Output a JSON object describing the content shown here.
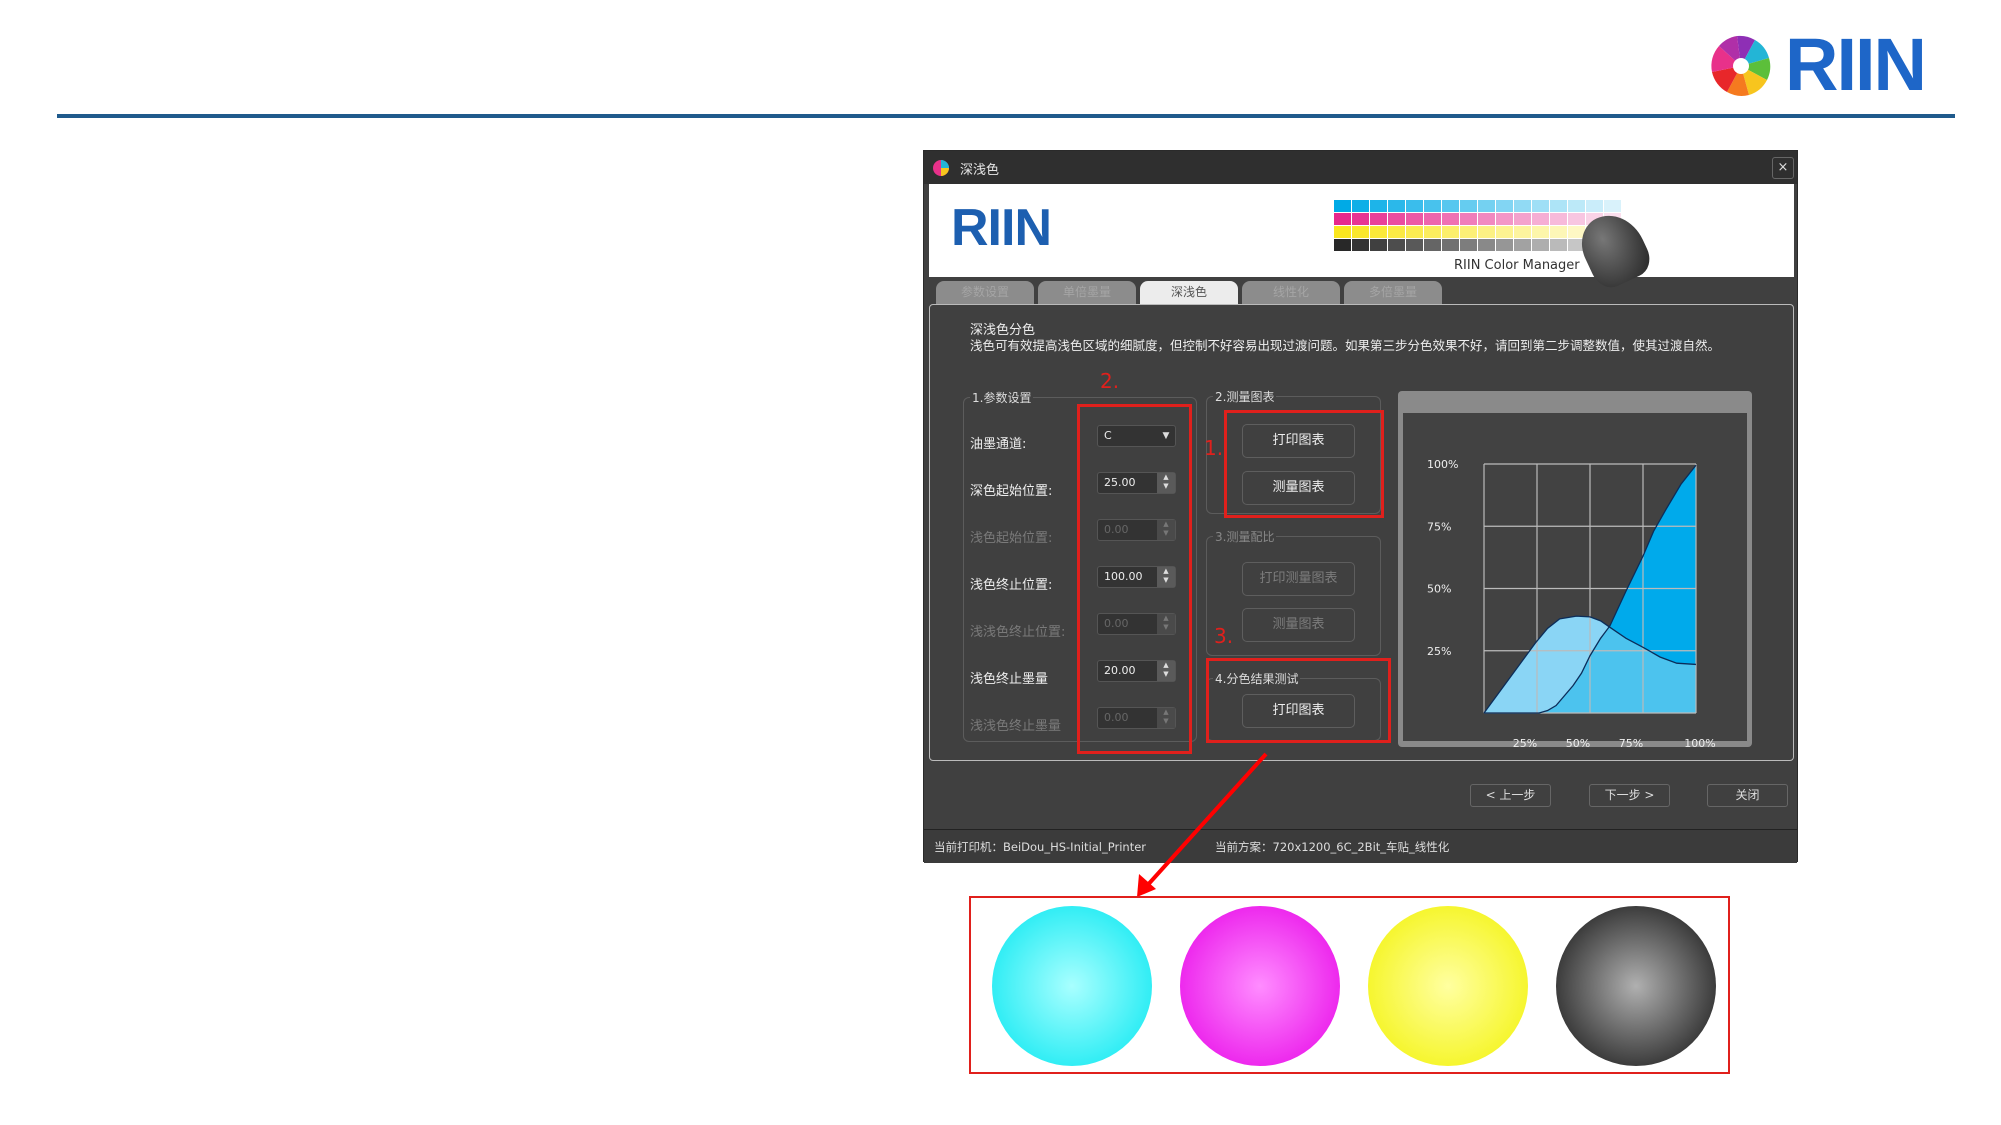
{
  "brand": {
    "name": "RIIN"
  },
  "dialog": {
    "title": "深浅色",
    "close": "×",
    "banner_logo": "RIIN",
    "banner_caption": "RIIN Color Manager",
    "tabs": [
      {
        "label": "参数设置"
      },
      {
        "label": "单倍墨量"
      },
      {
        "label": "深浅色",
        "active": true
      },
      {
        "label": "线性化"
      },
      {
        "label": "多倍墨量"
      }
    ],
    "section_title": "深浅色分色",
    "description": "浅色可有效提高浅色区域的细腻度，但控制不好容易出现过渡问题。如果第三步分色效果不好，请回到第二步调整数值，使其过渡自然。",
    "group1": {
      "title": "1.参数设置",
      "fields": [
        {
          "label": "油墨通道:",
          "value": "C",
          "type": "select",
          "enabled": true
        },
        {
          "label": "深色起始位置:",
          "value": "25.00",
          "enabled": true
        },
        {
          "label": "浅色起始位置:",
          "value": "0.00",
          "enabled": false
        },
        {
          "label": "浅色终止位置:",
          "value": "100.00",
          "enabled": true
        },
        {
          "label": "浅浅色终止位置:",
          "value": "0.00",
          "enabled": false
        },
        {
          "label": "浅色终止墨量",
          "value": "20.00",
          "enabled": true
        },
        {
          "label": "浅浅色终止墨量",
          "value": "0.00",
          "enabled": false
        }
      ]
    },
    "group2": {
      "title": "2.测量图表",
      "print": "打印图表",
      "measure": "测量图表"
    },
    "group3": {
      "title": "3.测量配比",
      "print": "打印测量图表",
      "measure": "测量图表"
    },
    "group4": {
      "title": "4.分色结果测试",
      "print": "打印图表"
    },
    "annotations": {
      "step1": "1.",
      "step2": "2.",
      "step3": "3."
    },
    "prev": "< 上一步",
    "next": "下一步 >",
    "close_btn": "关闭",
    "status": {
      "printer": "当前打印机：BeiDou_HS-Initial_Printer",
      "scheme": "当前方案：720x1200_6C_2Bit_车贴_线性化"
    }
  },
  "chart_data": {
    "type": "area",
    "x_ticks": [
      "25%",
      "50%",
      "75%",
      "100%"
    ],
    "y_ticks": [
      "25%",
      "50%",
      "75%",
      "100%"
    ],
    "xlim": [
      0,
      100
    ],
    "ylim": [
      0,
      100
    ],
    "grid": true,
    "series": [
      {
        "color": "#8ad5f5",
        "points": [
          [
            0,
            0
          ],
          [
            24.5,
            28.4
          ],
          [
            30,
            34
          ],
          [
            35.7,
            37.8
          ],
          [
            43.6,
            38.9
          ],
          [
            50,
            38.6
          ],
          [
            55,
            37
          ],
          [
            59.4,
            34.4
          ],
          [
            67,
            30
          ],
          [
            75,
            26.4
          ],
          [
            83,
            22.5
          ],
          [
            90.9,
            20
          ],
          [
            100,
            19.5
          ]
        ]
      },
      {
        "color": "#00aaeb",
        "points": [
          [
            0,
            0
          ],
          [
            26,
            0
          ],
          [
            30,
            1
          ],
          [
            34,
            3
          ],
          [
            42,
            11
          ],
          [
            46,
            16
          ],
          [
            50,
            23
          ],
          [
            55,
            30
          ],
          [
            59.4,
            35
          ],
          [
            67,
            49
          ],
          [
            75,
            63
          ],
          [
            80,
            73
          ],
          [
            86,
            82
          ],
          [
            93,
            92
          ],
          [
            100,
            99.5
          ]
        ]
      }
    ],
    "overlap_color": "#4cc3ee"
  },
  "swatches": [
    {
      "name": "cyan",
      "inner": "#a8ffff",
      "outer": "#00e6f0"
    },
    {
      "name": "magenta",
      "inner": "#ff8cff",
      "outer": "#e600e6"
    },
    {
      "name": "yellow",
      "inner": "#ffffa0",
      "outer": "#f2f200"
    },
    {
      "name": "black",
      "inner": "#b0b0b0",
      "outer": "#0c0c0c"
    }
  ]
}
